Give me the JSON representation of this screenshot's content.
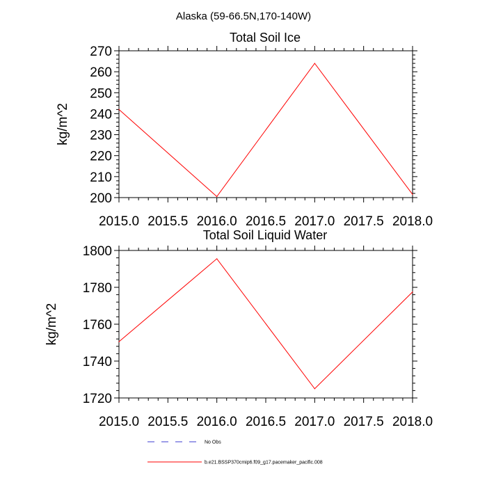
{
  "figure_title": "Alaska (59-66.5N,170-140W)",
  "legend": {
    "entries": [
      {
        "label": "No Obs",
        "color": "#3b3bd0",
        "style": "dashed"
      },
      {
        "label": "b.e21.BSSP370cmip6.f09_g17.pacemaker_pacific.008",
        "color": "#ff0000",
        "style": "solid"
      }
    ]
  },
  "chart_data": [
    {
      "type": "line",
      "title": "Total Soil Ice",
      "xlabel": "",
      "ylabel": "kg/m^2",
      "xlim": [
        2015.0,
        2018.0
      ],
      "ylim": [
        200,
        270
      ],
      "xticks": [
        2015.0,
        2015.5,
        2016.0,
        2016.5,
        2017.0,
        2017.5,
        2018.0
      ],
      "xtick_labels": [
        "2015.0",
        "2015.5",
        "2016.0",
        "2016.5",
        "2017.0",
        "2017.5",
        "2018.0"
      ],
      "yticks": [
        200,
        210,
        220,
        230,
        240,
        250,
        260,
        270
      ],
      "ytick_labels": [
        "200",
        "210",
        "220",
        "230",
        "240",
        "250",
        "260",
        "270"
      ],
      "series": [
        {
          "name": "b.e21.BSSP370cmip6.f09_g17.pacemaker_pacific.008",
          "color": "#ff0000",
          "x": [
            2015.0,
            2016.0,
            2017.0,
            2018.0
          ],
          "y": [
            242,
            200.5,
            264,
            201.5
          ]
        }
      ]
    },
    {
      "type": "line",
      "title": "Total Soil Liquid Water",
      "xlabel": "",
      "ylabel": "kg/m^2",
      "xlim": [
        2015.0,
        2018.0
      ],
      "ylim": [
        1720,
        1800
      ],
      "xticks": [
        2015.0,
        2015.5,
        2016.0,
        2016.5,
        2017.0,
        2017.5,
        2018.0
      ],
      "xtick_labels": [
        "2015.0",
        "2015.5",
        "2016.0",
        "2016.5",
        "2017.0",
        "2017.5",
        "2018.0"
      ],
      "yticks": [
        1720,
        1740,
        1760,
        1780,
        1800
      ],
      "ytick_labels": [
        "1720",
        "1740",
        "1760",
        "1780",
        "1800"
      ],
      "series": [
        {
          "name": "b.e21.BSSP370cmip6.f09_g17.pacemaker_pacific.008",
          "color": "#ff0000",
          "x": [
            2015.0,
            2016.0,
            2017.0,
            2018.0
          ],
          "y": [
            1750.5,
            1795.5,
            1725,
            1777.5
          ]
        }
      ]
    }
  ]
}
